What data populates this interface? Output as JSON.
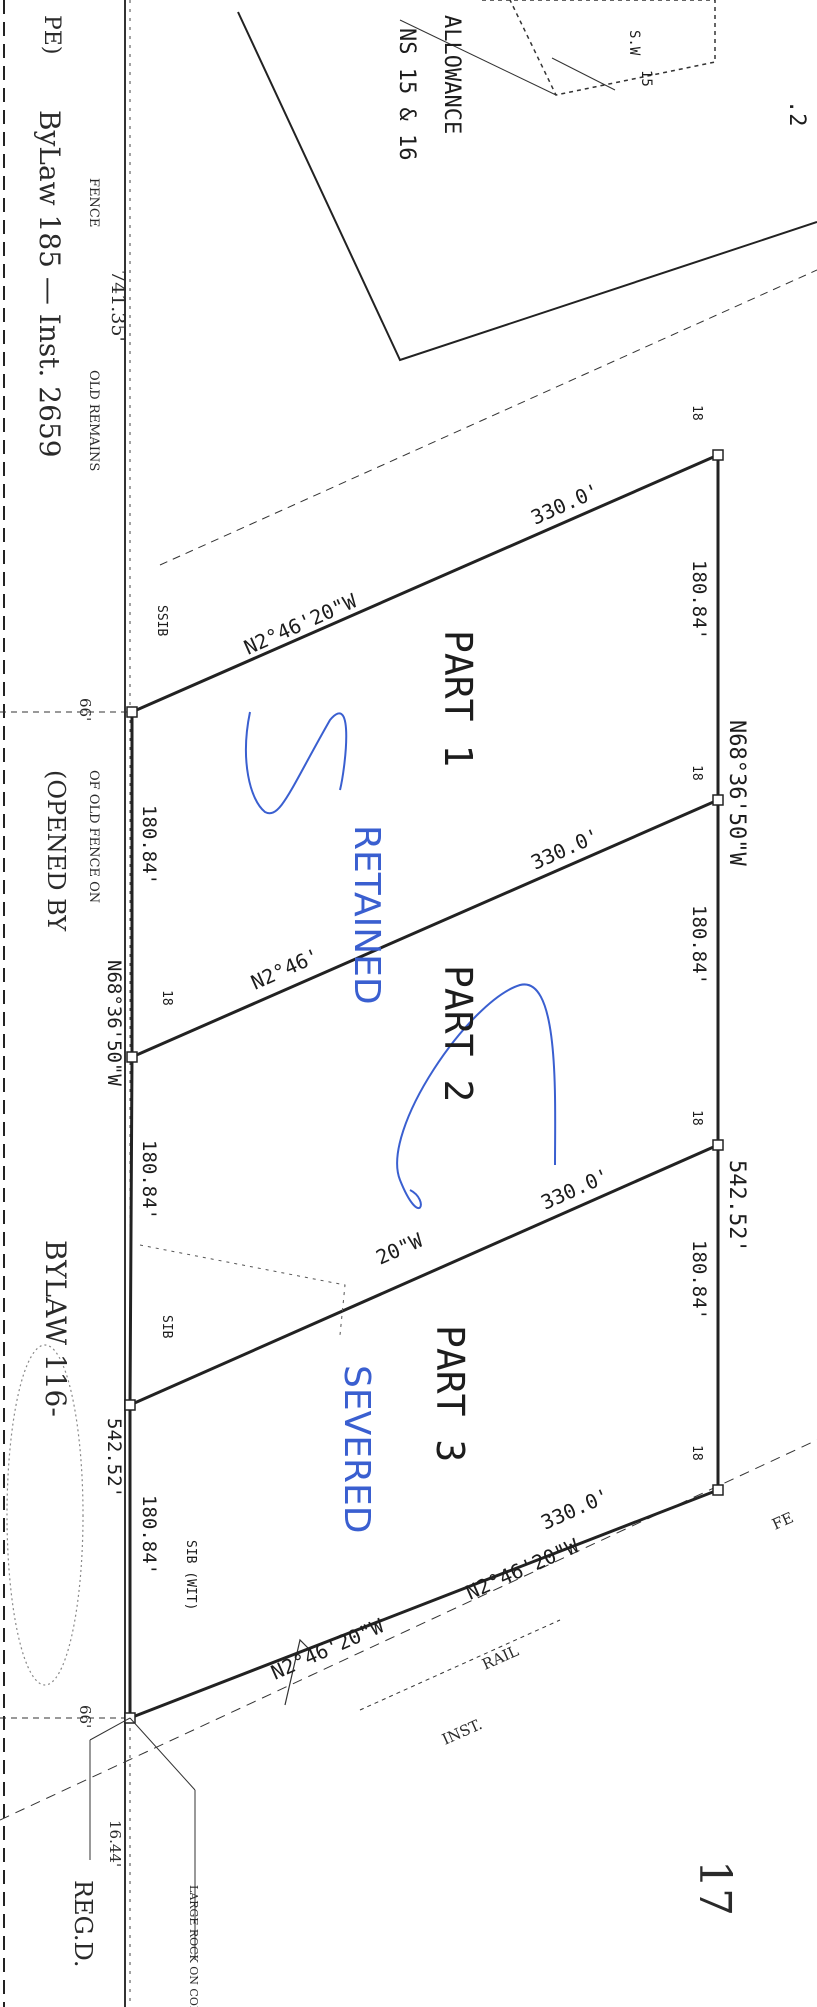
{
  "plan": {
    "allowance_label": "ALLOWANCE",
    "lots_label": "NS 15 & 16",
    "corner_marks": [
      "S.W",
      "15",
      ".2"
    ],
    "top_left_fragment": "PE)",
    "bylaw_text": "ByLaw 185 — Inst. 2659",
    "fence_label": "FENCE",
    "left_bearing": "741.35'",
    "old_fence_note": "OLD REMAINS",
    "opened_text": "(OPENED BY",
    "of_old_fence": "OF OLD FENCE ON",
    "bylaw_circled": "BYLAW 116-",
    "width_66_top": "66'",
    "width_66_bottom": "66'",
    "reg_d": "REG.D.",
    "dim_16_44": "16.44'",
    "large_rock_note": "LARGE ROCK ON CORNER",
    "inst_label": "INST.",
    "rail_label": "RAIL",
    "fe_fragment": "FE",
    "marks": {
      "m18_a": "18",
      "m18_b": "18",
      "m18_c": "18",
      "m18_d": "18",
      "m18_e": "18",
      "ssib_a": "SSIB",
      "ssib_b": "SIB",
      "sib_wit": "SIB (WIT)"
    },
    "parts": [
      {
        "label": "PART 1",
        "front": "330.0'",
        "bearing": "N2°46'20\"W",
        "rear_dim": "180.84'",
        "front_dim": "180.84'"
      },
      {
        "label": "PART 2",
        "front": "330.0'",
        "bearing": "N2°46'",
        "rear_dim": "180.84'",
        "front_dim": "180.84'"
      },
      {
        "label": "PART 3",
        "front": "330.0'",
        "bearing": "N2°46'20\"W",
        "rear_dim": "180.84'",
        "front_dim": "180.84'"
      }
    ],
    "road_bearing": "N68°36'50\"W",
    "road_bearing_2": "N68°36'50\"W",
    "total_frontage": "542.52'",
    "total_frontage_2": "542.52'",
    "bottom_bearing": "N2°46'20\"W",
    "mid_bearing_fragment": "20\"W",
    "retained": "RETAINED",
    "severed": "SEVERED",
    "corner_17": "17",
    "colors": {
      "ink": "#1d1d1d",
      "pen": "#3a5fd0"
    }
  }
}
